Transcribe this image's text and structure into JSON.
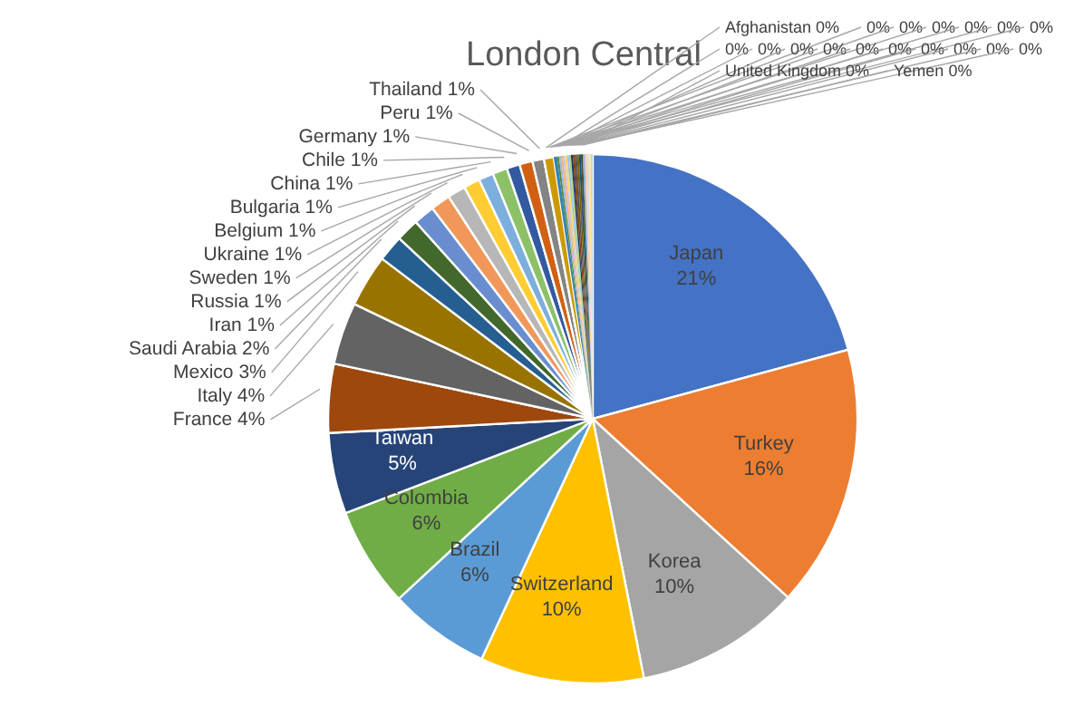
{
  "chart_data": {
    "type": "pie",
    "title": "London Central",
    "categories": [
      "Japan",
      "Turkey",
      "Korea",
      "Switzerland",
      "Brazil",
      "Colombia",
      "Taiwan",
      "France",
      "Italy",
      "Mexico",
      "Saudi Arabia",
      "Iran",
      "Russia",
      "Sweden",
      "Ukraine",
      "Belgium",
      "Bulgaria",
      "China",
      "Chile",
      "Germany",
      "Peru",
      "Thailand",
      "Afghanistan",
      null,
      null,
      null,
      null,
      null,
      null,
      null,
      null,
      null,
      null,
      null,
      null,
      null,
      null,
      null,
      null,
      "United Kingdom",
      "Yemen"
    ],
    "values": [
      20.8,
      16.0,
      10.1,
      10.0,
      6.2,
      6.1,
      4.94,
      4.2,
      3.8,
      3.2,
      1.6,
      1.4,
      1.3,
      1.2,
      1.1,
      1.0,
      0.9,
      0.9,
      0.8,
      0.8,
      0.7,
      0.6,
      0.2,
      0.12,
      0.12,
      0.12,
      0.12,
      0.12,
      0.12,
      0.12,
      0.12,
      0.12,
      0.12,
      0.12,
      0.12,
      0.12,
      0.12,
      0.12,
      0.12,
      0.12,
      0.12
    ],
    "value_labels": [
      "21%",
      "16%",
      "10%",
      "10%",
      "6%",
      "6%",
      "5%",
      "4%",
      "4%",
      "3%",
      "2%",
      "1%",
      "1%",
      "1%",
      "1%",
      "1%",
      "1%",
      "1%",
      "1%",
      "1%",
      "1%",
      "1%",
      "0%",
      "0%",
      "0%",
      "0%",
      "0%",
      "0%",
      "0%",
      "0%",
      "0%",
      "0%",
      "0%",
      "0%",
      "0%",
      "0%",
      "0%",
      "0%",
      "0%",
      "0%",
      "0%"
    ],
    "colors": [
      "#4472c4",
      "#ed7d31",
      "#a5a5a5",
      "#ffc000",
      "#5b9bd5",
      "#70ad47",
      "#264478",
      "#9e480e",
      "#636363",
      "#997300",
      "#255e91",
      "#43682b",
      "#698ed0",
      "#f1975a",
      "#b7b7b7",
      "#ffcd33",
      "#7cafdd",
      "#8cc168",
      "#335aa1",
      "#d26012",
      "#848484",
      "#cc9a00",
      "#3283b9",
      "#5a8a39",
      "#a2b8e1",
      "#f4b183",
      "#c9c9c9",
      "#ffd966",
      "#9dc3e6",
      "#a9d18e",
      "#1f3864",
      "#843c0b",
      "#525252",
      "#7f6000",
      "#1f4e79",
      "#375623",
      "#8faadc",
      "#f8cbad",
      "#dbdbdb",
      "#ffe699",
      "#bdd7ee"
    ]
  }
}
